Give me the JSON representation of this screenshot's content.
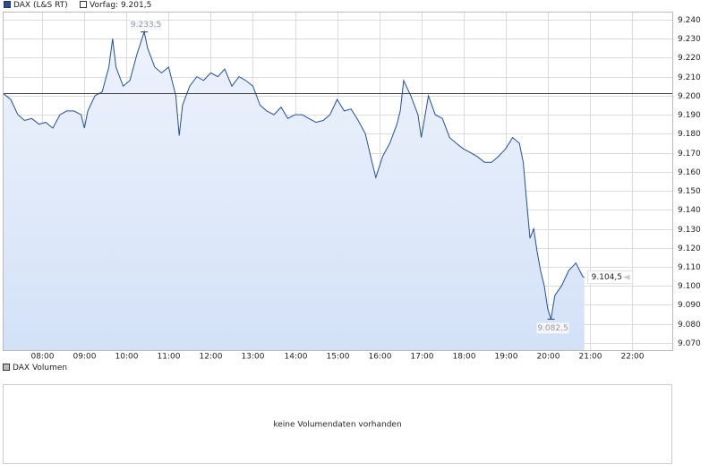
{
  "chart_data": {
    "type": "area",
    "legend": {
      "position": "top-left"
    },
    "series": [
      {
        "name": "DAX (L&S RT)",
        "color": "#1f4fa0",
        "x": [
          7.08,
          7.25,
          7.42,
          7.58,
          7.75,
          7.92,
          8.08,
          8.25,
          8.42,
          8.58,
          8.75,
          8.92,
          9.0,
          9.08,
          9.25,
          9.42,
          9.58,
          9.67,
          9.75,
          9.92,
          10.08,
          10.25,
          10.42,
          10.5,
          10.67,
          10.83,
          11.0,
          11.17,
          11.25,
          11.33,
          11.5,
          11.67,
          11.83,
          12.0,
          12.17,
          12.33,
          12.5,
          12.67,
          12.83,
          13.0,
          13.17,
          13.33,
          13.5,
          13.67,
          13.83,
          14.0,
          14.17,
          14.33,
          14.5,
          14.67,
          14.83,
          15.0,
          15.17,
          15.33,
          15.5,
          15.67,
          15.83,
          15.92,
          16.08,
          16.25,
          16.42,
          16.5,
          16.58,
          16.75,
          16.92,
          17.0,
          17.17,
          17.33,
          17.5,
          17.67,
          17.83,
          18.0,
          18.17,
          18.33,
          18.5,
          18.67,
          18.83,
          19.0,
          19.17,
          19.33,
          19.42,
          19.5,
          19.58,
          19.67,
          19.75,
          19.83,
          19.92,
          20.0,
          20.08,
          20.17,
          20.33,
          20.5,
          20.67,
          20.83,
          20.87
        ],
        "values": [
          9201,
          9198,
          9190,
          9187,
          9188,
          9185,
          9186,
          9183,
          9190,
          9192,
          9192,
          9190,
          9183,
          9192,
          9200,
          9202,
          9215,
          9230,
          9215,
          9205,
          9208,
          9222,
          9233.5,
          9225,
          9215,
          9212,
          9215,
          9200,
          9179,
          9195,
          9205,
          9210,
          9208,
          9212,
          9210,
          9214,
          9205,
          9210,
          9208,
          9205,
          9195,
          9192,
          9190,
          9194,
          9188,
          9190,
          9190,
          9188,
          9186,
          9187,
          9190,
          9198,
          9192,
          9193,
          9187,
          9180,
          9165,
          9157,
          9168,
          9175,
          9185,
          9192,
          9208,
          9200,
          9190,
          9178,
          9200,
          9190,
          9188,
          9178,
          9175,
          9172,
          9170,
          9168,
          9165,
          9165,
          9168,
          9172,
          9178,
          9175,
          9165,
          9145,
          9125,
          9130,
          9118,
          9108,
          9100,
          9088,
          9082.5,
          9095,
          9100,
          9108,
          9112,
          9105,
          9104.5
        ]
      }
    ],
    "reference_line": {
      "value": 9201.5,
      "label": "Vorfag: 9.201,5"
    },
    "annotations": [
      {
        "x": 10.42,
        "value": 9233.5,
        "label": "9.233,5",
        "position": "above"
      },
      {
        "x": 20.08,
        "value": 9082.5,
        "label": "9.082,5",
        "position": "below"
      },
      {
        "x": 20.87,
        "value": 9104.5,
        "label": "9.104,5",
        "position": "right"
      }
    ],
    "xlim": [
      7.08,
      22.96
    ],
    "xticks": [
      {
        "value": 8,
        "label": "08:00"
      },
      {
        "value": 9,
        "label": "09:00"
      },
      {
        "value": 10,
        "label": "10:00"
      },
      {
        "value": 11,
        "label": "11:00"
      },
      {
        "value": 12,
        "label": "12:00"
      },
      {
        "value": 13,
        "label": "13:00"
      },
      {
        "value": 14,
        "label": "14:00"
      },
      {
        "value": 15,
        "label": "15:00"
      },
      {
        "value": 16,
        "label": "16:00"
      },
      {
        "value": 17,
        "label": "17:00"
      },
      {
        "value": 18,
        "label": "18:00"
      },
      {
        "value": 19,
        "label": "19:00"
      },
      {
        "value": 20,
        "label": "20:00"
      },
      {
        "value": 21,
        "label": "21:00"
      },
      {
        "value": 22,
        "label": "22:00"
      }
    ],
    "ylim": [
      9066.2,
      9244.2
    ],
    "yticks": [
      {
        "value": 9070,
        "label": "9.070"
      },
      {
        "value": 9080,
        "label": "9.080"
      },
      {
        "value": 9090,
        "label": "9.090"
      },
      {
        "value": 9100,
        "label": "9.100"
      },
      {
        "value": 9110,
        "label": "9.110"
      },
      {
        "value": 9120,
        "label": "9.120"
      },
      {
        "value": 9130,
        "label": "9.130"
      },
      {
        "value": 9140,
        "label": "9.140"
      },
      {
        "value": 9150,
        "label": "9.150"
      },
      {
        "value": 9160,
        "label": "9.160"
      },
      {
        "value": 9170,
        "label": "9.170"
      },
      {
        "value": 9180,
        "label": "9.180"
      },
      {
        "value": 9190,
        "label": "9.190"
      },
      {
        "value": 9200,
        "label": "9.200"
      },
      {
        "value": 9210,
        "label": "9.210"
      },
      {
        "value": 9220,
        "label": "9.220"
      },
      {
        "value": 9230,
        "label": "9.230"
      },
      {
        "value": 9240,
        "label": "9.240"
      }
    ],
    "grid": true
  },
  "volume_panel": {
    "legend": "DAX Volumen",
    "message": "keine Volumendaten vorhanden"
  }
}
